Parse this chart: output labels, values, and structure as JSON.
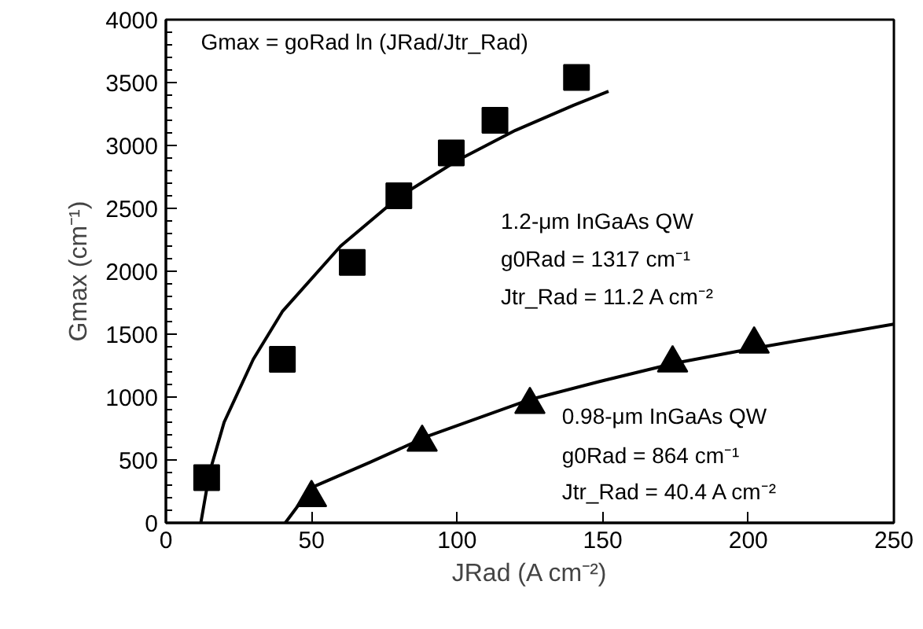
{
  "chart_data": {
    "type": "scatter",
    "xlabel": "JRad (A cm⁻²)",
    "ylabel": "Gmax (cm⁻¹)",
    "xlim": [
      0,
      250
    ],
    "ylim": [
      0,
      4000
    ],
    "xticks": [
      0,
      50,
      100,
      150,
      200,
      250
    ],
    "yticks": [
      0,
      500,
      1000,
      1500,
      2000,
      2500,
      3000,
      3500,
      4000
    ],
    "grid": false,
    "series": [
      {
        "name": "1.2-μm InGaAs QW",
        "marker": "square",
        "color": "#000000",
        "x": [
          14,
          40,
          64,
          80,
          98,
          113,
          141
        ],
        "values": [
          360,
          1300,
          2070,
          2600,
          2940,
          3200,
          3540
        ]
      },
      {
        "name": "0.98-μm InGaAs QW",
        "marker": "triangle",
        "color": "#000000",
        "x": [
          50,
          88,
          125,
          174,
          202
        ],
        "values": [
          200,
          640,
          940,
          1270,
          1420
        ]
      },
      {
        "type": "line",
        "color": "#000000",
        "x": [
          12,
          15,
          20,
          30,
          40,
          60,
          80,
          100,
          120,
          140,
          152
        ],
        "values": [
          0,
          400,
          800,
          1300,
          1680,
          2200,
          2590,
          2880,
          3120,
          3320,
          3430
        ]
      },
      {
        "type": "line",
        "color": "#000000",
        "x": [
          41,
          50,
          70,
          90,
          125,
          150,
          175,
          200,
          225,
          250
        ],
        "values": [
          0,
          280,
          480,
          690,
          980,
          1130,
          1270,
          1380,
          1480,
          1580
        ]
      }
    ],
    "annotations": [
      "Gmax = goRad ln (JRad/Jtr_Rad)",
      "g0Rad = 1317 cm⁻¹",
      "Jtr_Rad = 11.2 A cm⁻²",
      "g0Rad = 864 cm⁻¹",
      "Jtr_Rad = 40.4 A cm⁻²"
    ]
  }
}
